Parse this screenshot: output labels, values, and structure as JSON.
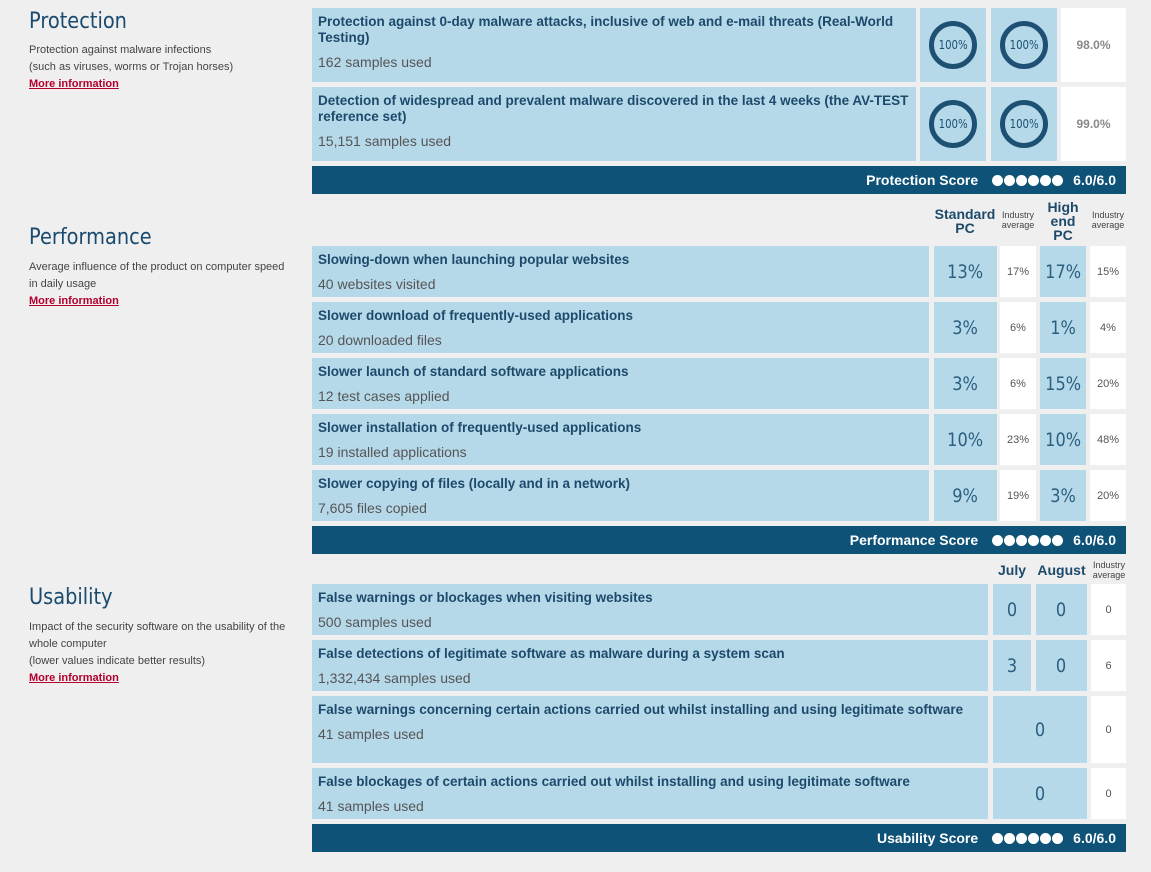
{
  "protection": {
    "title": "Protection",
    "desc_line1": "Protection against malware infections",
    "desc_line2": "(such as viruses, worms or Trojan horses)",
    "more": "More information",
    "tests": [
      {
        "name": "Protection against 0-day malware attacks, inclusive of web and e-mail threats (Real-World Testing)",
        "sub": "162 samples used",
        "v1": "100%",
        "v2": "100%",
        "avg": "98.0%"
      },
      {
        "name": "Detection of widespread and prevalent malware discovered in the last 4 weeks (the AV-TEST reference set)",
        "sub": "15,151 samples used",
        "v1": "100%",
        "v2": "100%",
        "avg": "99.0%"
      }
    ],
    "score_label": "Protection Score",
    "score_value": "6.0/6.0",
    "score_dots": 6
  },
  "performance": {
    "title": "Performance",
    "desc_line1": "Average influence of the product on computer speed in daily usage",
    "more": "More information",
    "col_std": "Standard PC",
    "col_avg": "Industry average",
    "col_high": "High end PC",
    "col_avg2": "Industry average",
    "tests": [
      {
        "name": "Slowing-down when launching popular websites",
        "sub": "40 websites visited",
        "std": "13%",
        "std_avg": "17%",
        "high": "17%",
        "high_avg": "15%"
      },
      {
        "name": "Slower download of frequently-used applications",
        "sub": "20 downloaded files",
        "std": "3%",
        "std_avg": "6%",
        "high": "1%",
        "high_avg": "4%"
      },
      {
        "name": "Slower launch of standard software applications",
        "sub": "12 test cases applied",
        "std": "3%",
        "std_avg": "6%",
        "high": "15%",
        "high_avg": "20%"
      },
      {
        "name": "Slower installation of frequently-used applications",
        "sub": "19 installed applications",
        "std": "10%",
        "std_avg": "23%",
        "high": "10%",
        "high_avg": "48%"
      },
      {
        "name": "Slower copying of files (locally and in a network)",
        "sub": "7,605 files copied",
        "std": "9%",
        "std_avg": "19%",
        "high": "3%",
        "high_avg": "20%"
      }
    ],
    "score_label": "Performance Score",
    "score_value": "6.0/6.0",
    "score_dots": 6
  },
  "usability": {
    "title": "Usability",
    "desc_line1": "Impact of the security software on the usability of the whole computer",
    "desc_line2": "(lower values indicate better results)",
    "more": "More information",
    "col_july": "July",
    "col_aug": "August",
    "col_avg": "Industry average",
    "tests": [
      {
        "name": "False warnings or blockages when visiting websites",
        "sub": "500 samples used",
        "july": "0",
        "aug": "0",
        "avg": "0"
      },
      {
        "name": "False detections of legitimate software as malware during a system scan",
        "sub": "1,332,434 samples used",
        "july": "3",
        "aug": "0",
        "avg": "6"
      },
      {
        "name": "False warnings concerning certain actions carried out whilst installing and using legitimate software",
        "sub": "41 samples used",
        "merged": "0",
        "avg": "0"
      },
      {
        "name": "False blockages of certain actions carried out whilst installing and using legitimate software",
        "sub": "41 samples used",
        "merged": "0",
        "avg": "0"
      }
    ],
    "score_label": "Usability Score",
    "score_value": "6.0/6.0",
    "score_dots": 6
  },
  "colors": {
    "accent": "#0e5277",
    "cell": "#b6d9ea",
    "link": "#b3002d"
  }
}
